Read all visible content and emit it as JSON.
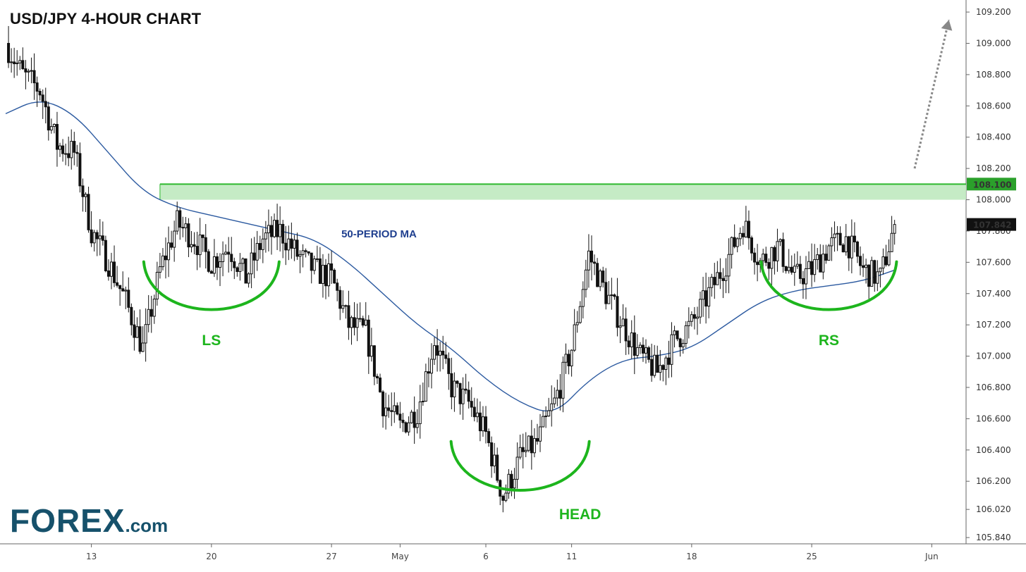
{
  "title": "USD/JPY 4-HOUR CHART",
  "brand": {
    "name": "FOREX",
    "tld": ".com"
  },
  "colors": {
    "bull": "#ffffff",
    "bear": "#111111",
    "ma": "#2c5aa0",
    "resistance_zone": "#bfe9bf",
    "resistance_line": "#2db82d",
    "pattern": "#1db51d",
    "arrow": "#888888",
    "price_tag": "#111111",
    "level_tag": "#2ba02b"
  },
  "chart_data": {
    "type": "candlestick",
    "title": "USD/JPY 4-HOUR CHART",
    "x_range": [
      "2020-04-08",
      "2020-06-03"
    ],
    "ylim": [
      105.8,
      109.25
    ],
    "y_ticks": [
      105.84,
      106.02,
      106.2,
      106.4,
      106.6,
      106.8,
      107.0,
      107.2,
      107.4,
      107.6,
      107.8,
      108.0,
      108.2,
      108.4,
      108.6,
      108.8,
      109.0,
      109.2
    ],
    "y_tick_labels": [
      "105.840",
      "106.020",
      "106.200",
      "106.400",
      "106.600",
      "106.800",
      "107.000",
      "107.200",
      "107.400",
      "107.600",
      "107.800",
      "108.000",
      "108.200",
      "108.400",
      "108.600",
      "108.800",
      "109.000",
      "109.200"
    ],
    "x_ticks": [
      {
        "label": "13",
        "date": "2020-04-13"
      },
      {
        "label": "20",
        "date": "2020-04-20"
      },
      {
        "label": "27",
        "date": "2020-04-27"
      },
      {
        "label": "May",
        "date": "2020-05-01"
      },
      {
        "label": "6",
        "date": "2020-05-06"
      },
      {
        "label": "11",
        "date": "2020-05-11"
      },
      {
        "label": "18",
        "date": "2020-05-18"
      },
      {
        "label": "25",
        "date": "2020-05-25"
      },
      {
        "label": "Jun",
        "date": "2020-06-01"
      }
    ],
    "price_path": [
      [
        "2020-04-08",
        109.0
      ],
      [
        "2020-04-09",
        108.8
      ],
      [
        "2020-04-10",
        108.7
      ],
      [
        "2020-04-11",
        108.35
      ],
      [
        "2020-04-12",
        108.3
      ],
      [
        "2020-04-13",
        107.8
      ],
      [
        "2020-04-14",
        107.6
      ],
      [
        "2020-04-15",
        107.35
      ],
      [
        "2020-04-16",
        107.05
      ],
      [
        "2020-04-17",
        107.55
      ],
      [
        "2020-04-18",
        107.85
      ],
      [
        "2020-04-19",
        107.75
      ],
      [
        "2020-04-20",
        107.6
      ],
      [
        "2020-04-21",
        107.7
      ],
      [
        "2020-04-22",
        107.5
      ],
      [
        "2020-04-23",
        107.75
      ],
      [
        "2020-04-24",
        107.8
      ],
      [
        "2020-04-25",
        107.65
      ],
      [
        "2020-04-26",
        107.55
      ],
      [
        "2020-04-27",
        107.5
      ],
      [
        "2020-04-28",
        107.2
      ],
      [
        "2020-04-29",
        107.15
      ],
      [
        "2020-04-30",
        106.7
      ],
      [
        "2020-05-01",
        106.55
      ],
      [
        "2020-05-02",
        106.65
      ],
      [
        "2020-05-03",
        107.1
      ],
      [
        "2020-05-04",
        106.8
      ],
      [
        "2020-05-05",
        106.7
      ],
      [
        "2020-05-06",
        106.5
      ],
      [
        "2020-05-07",
        106.1
      ],
      [
        "2020-05-08",
        106.35
      ],
      [
        "2020-05-09",
        106.45
      ],
      [
        "2020-05-10",
        106.7
      ],
      [
        "2020-05-11",
        107.05
      ],
      [
        "2020-05-12",
        107.65
      ],
      [
        "2020-05-13",
        107.4
      ],
      [
        "2020-05-14",
        107.2
      ],
      [
        "2020-05-15",
        107.0
      ],
      [
        "2020-05-16",
        106.9
      ],
      [
        "2020-05-17",
        107.1
      ],
      [
        "2020-05-18",
        107.2
      ],
      [
        "2020-05-19",
        107.4
      ],
      [
        "2020-05-20",
        107.6
      ],
      [
        "2020-05-21",
        107.85
      ],
      [
        "2020-05-22",
        107.6
      ],
      [
        "2020-05-23",
        107.7
      ],
      [
        "2020-05-24",
        107.5
      ],
      [
        "2020-05-25",
        107.55
      ],
      [
        "2020-05-26",
        107.7
      ],
      [
        "2020-05-27",
        107.75
      ],
      [
        "2020-05-28",
        107.55
      ],
      [
        "2020-05-29",
        107.5
      ],
      [
        "2020-05-29T20:00",
        107.842
      ]
    ],
    "moving_average": {
      "name": "50-PERIOD MA",
      "points": [
        [
          "2020-04-08",
          108.55
        ],
        [
          "2020-04-10",
          108.65
        ],
        [
          "2020-04-12",
          108.55
        ],
        [
          "2020-04-14",
          108.3
        ],
        [
          "2020-04-16",
          108.05
        ],
        [
          "2020-04-18",
          107.95
        ],
        [
          "2020-04-20",
          107.9
        ],
        [
          "2020-04-22",
          107.85
        ],
        [
          "2020-04-24",
          107.8
        ],
        [
          "2020-04-26",
          107.75
        ],
        [
          "2020-04-28",
          107.6
        ],
        [
          "2020-04-30",
          107.4
        ],
        [
          "2020-05-02",
          107.2
        ],
        [
          "2020-05-04",
          107.05
        ],
        [
          "2020-05-06",
          106.85
        ],
        [
          "2020-05-08",
          106.7
        ],
        [
          "2020-05-10",
          106.62
        ],
        [
          "2020-05-12",
          106.85
        ],
        [
          "2020-05-14",
          106.98
        ],
        [
          "2020-05-16",
          107.0
        ],
        [
          "2020-05-18",
          107.05
        ],
        [
          "2020-05-20",
          107.2
        ],
        [
          "2020-05-22",
          107.35
        ],
        [
          "2020-05-24",
          107.42
        ],
        [
          "2020-05-26",
          107.45
        ],
        [
          "2020-05-28",
          107.48
        ],
        [
          "2020-05-29T20:00",
          107.55
        ]
      ]
    },
    "resistance": {
      "level": 108.1,
      "label": "108.100",
      "zone": [
        108.0,
        108.1
      ],
      "from": "2020-04-17"
    },
    "last_price": {
      "value": 107.842,
      "label": "107.842"
    },
    "annotations": [
      {
        "label": "LS",
        "center": [
          "2020-04-20",
          107.55
        ]
      },
      {
        "label": "HEAD",
        "center": [
          "2020-05-08",
          106.4
        ]
      },
      {
        "label": "RS",
        "center": [
          "2020-05-26",
          107.55
        ]
      },
      {
        "label": "50-PERIOD MA"
      }
    ],
    "arrow": {
      "from": [
        "2020-05-31",
        108.2
      ],
      "to": [
        "2020-06-02",
        109.15
      ]
    },
    "grid": false,
    "legend": "none"
  }
}
